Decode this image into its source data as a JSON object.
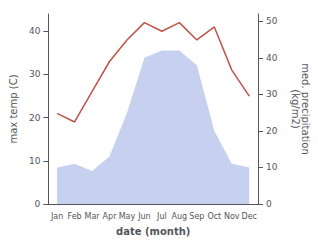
{
  "chart_data": {
    "type": "line",
    "xlabel": "date (month)",
    "ylabel": "max temp (C)",
    "y2label": "med. precipitation\n(kg/m2)",
    "categories": [
      "Jan",
      "Feb",
      "Mar",
      "Apr",
      "May",
      "Jun",
      "Jul",
      "Aug",
      "Sep",
      "Oct",
      "Nov",
      "Dec"
    ],
    "series": [
      {
        "type": "area",
        "axis": "y2",
        "color": "#c8d0f0",
        "values": [
          10,
          11,
          9,
          13,
          25,
          40,
          42,
          42,
          38,
          20,
          11,
          10
        ]
      },
      {
        "type": "line",
        "color": "#c0524a",
        "values": [
          21,
          19,
          26,
          33,
          38,
          42,
          40,
          42,
          38,
          41,
          31,
          25
        ]
      }
    ],
    "ylim": [
      0,
      44
    ],
    "yticks": [
      0,
      10,
      20,
      30,
      40
    ],
    "y2lim": [
      0,
      52
    ],
    "y2ticks": [
      0,
      10,
      20,
      30,
      40,
      50
    ],
    "grid": false
  }
}
